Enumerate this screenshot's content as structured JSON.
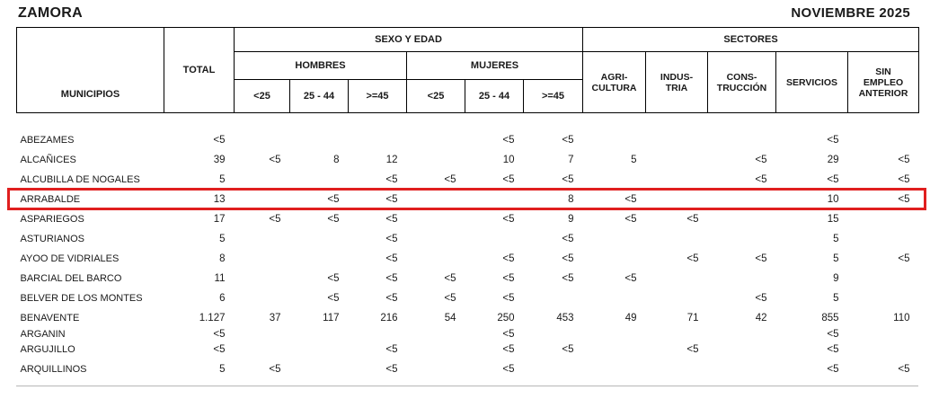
{
  "header": {
    "region": "ZAMORA",
    "period": "NOVIEMBRE 2025"
  },
  "table": {
    "municipios_label": "MUNICIPIOS",
    "total_label": "TOTAL",
    "sexo_edad_label": "SEXO Y EDAD",
    "sectores_label": "SECTORES",
    "hombres_label": "HOMBRES",
    "mujeres_label": "MUJERES",
    "age_labels": [
      "<25",
      "25 - 44",
      ">=45"
    ],
    "sector_labels": [
      "AGRI-\nCULTURA",
      "INDUS-\nTRIA",
      "CONS-\nTRUCCIÓN",
      "SERVICIOS",
      "SIN\nEMPLEO\nANTERIOR"
    ],
    "columns": [
      "TOTAL",
      "HOMBRES <25",
      "HOMBRES 25-44",
      "HOMBRES >=45",
      "MUJERES <25",
      "MUJERES 25-44",
      "MUJERES >=45",
      "AGRICULTURA",
      "INDUSTRIA",
      "CONSTRUCCIÓN",
      "SERVICIOS",
      "SIN EMPLEO ANTERIOR"
    ],
    "rows": [
      {
        "name": "ABEZAMES",
        "values": [
          "<5",
          "",
          "",
          "",
          "",
          "<5",
          "<5",
          "",
          "",
          "",
          "<5",
          ""
        ]
      },
      {
        "name": "ALCAÑICES",
        "values": [
          "39",
          "<5",
          "8",
          "12",
          "",
          "10",
          "7",
          "5",
          "",
          "<5",
          "29",
          "<5"
        ]
      },
      {
        "name": "ALCUBILLA DE NOGALES",
        "values": [
          "5",
          "",
          "",
          "<5",
          "<5",
          "<5",
          "<5",
          "",
          "",
          "<5",
          "<5",
          "<5"
        ]
      },
      {
        "name": "ARRABALDE",
        "values": [
          "13",
          "",
          "<5",
          "<5",
          "",
          "",
          "8",
          "<5",
          "",
          "",
          "10",
          "<5"
        ],
        "highlight": true
      },
      {
        "name": "ASPARIEGOS",
        "values": [
          "17",
          "<5",
          "<5",
          "<5",
          "",
          "<5",
          "9",
          "<5",
          "<5",
          "",
          "15",
          ""
        ]
      },
      {
        "name": "ASTURIANOS",
        "values": [
          "5",
          "",
          "",
          "<5",
          "",
          "",
          "<5",
          "",
          "",
          "",
          "5",
          ""
        ]
      },
      {
        "name": "AYOO DE VIDRIALES",
        "values": [
          "8",
          "",
          "",
          "<5",
          "",
          "<5",
          "<5",
          "",
          "<5",
          "<5",
          "5",
          "<5"
        ]
      },
      {
        "name": "BARCIAL DEL BARCO",
        "values": [
          "11",
          "",
          "<5",
          "<5",
          "<5",
          "<5",
          "<5",
          "<5",
          "",
          "",
          "9",
          ""
        ]
      },
      {
        "name": "BELVER DE LOS MONTES",
        "values": [
          "6",
          "",
          "<5",
          "<5",
          "<5",
          "<5",
          "",
          "",
          "",
          "<5",
          "5",
          ""
        ]
      },
      {
        "name": "BENAVENTE",
        "values": [
          "1.127",
          "37",
          "117",
          "216",
          "54",
          "250",
          "453",
          "49",
          "71",
          "42",
          "855",
          "110"
        ]
      },
      {
        "name": "ARGANIN",
        "values": [
          "<5",
          "",
          "",
          "",
          "",
          "<5",
          "",
          "",
          "",
          "",
          "<5",
          ""
        ],
        "clipped": true
      },
      {
        "name": "ARGUJILLO",
        "values": [
          "<5",
          "",
          "",
          "<5",
          "",
          "<5",
          "<5",
          "",
          "<5",
          "",
          "<5",
          ""
        ]
      },
      {
        "name": "ARQUILLINOS",
        "values": [
          "5",
          "<5",
          "",
          "<5",
          "",
          "<5",
          "",
          "",
          "",
          "",
          "<5",
          "<5"
        ]
      }
    ]
  },
  "highlight": {
    "row": "ARRABALDE",
    "color": "#e01f1f"
  }
}
